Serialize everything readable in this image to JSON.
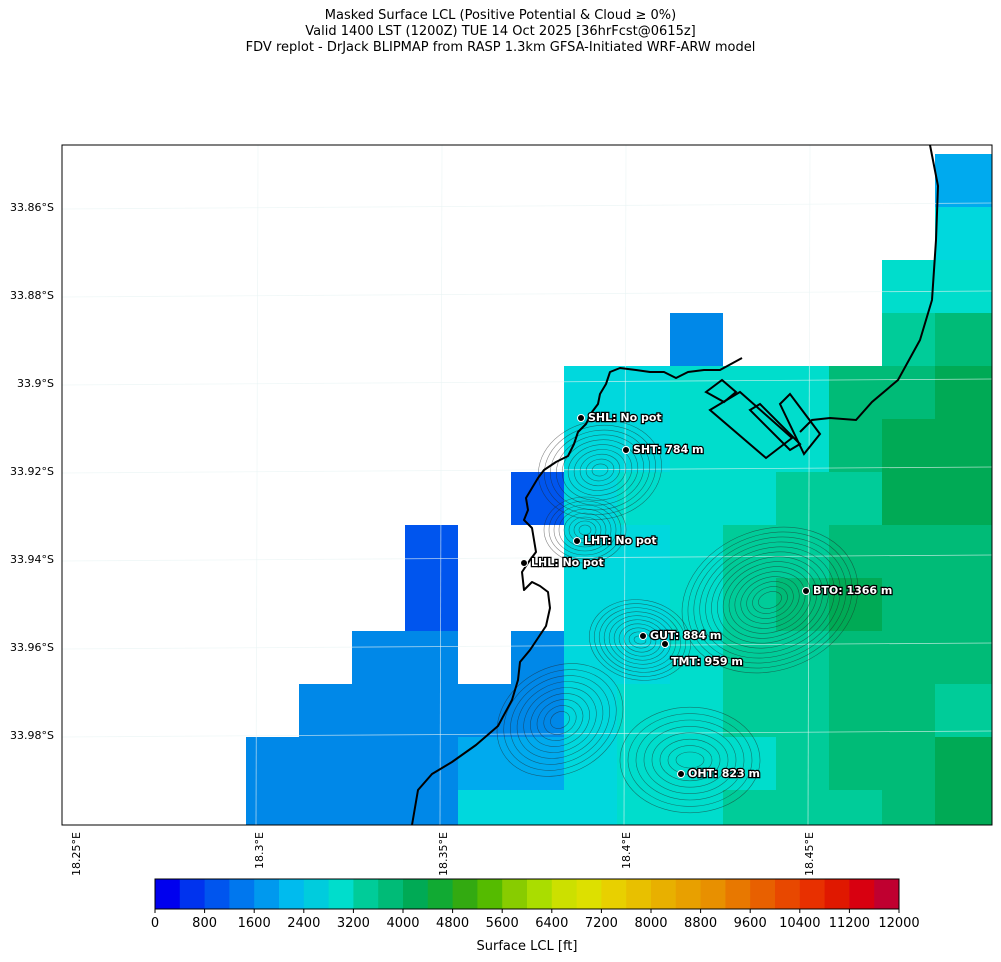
{
  "title": {
    "line1": "Masked Surface LCL (Positive Potential & Cloud ≥ 0%)",
    "line2": "Valid 1400 LST (1200Z) TUE 14 Oct 2025 [36hrFcst@0615z]",
    "line3": "FDV replot - DrJack BLIPMAP from RASP 1.3km GFSA-Initiated WRF-ARW model"
  },
  "map": {
    "lat_ticks": [
      "33.86°S",
      "33.88°S",
      "33.9°S",
      "33.92°S",
      "33.94°S",
      "33.96°S",
      "33.98°S"
    ],
    "lon_ticks": [
      "18.25°E",
      "18.3°E",
      "18.35°E",
      "18.4°E",
      "18.45°E"
    ],
    "stations": [
      {
        "code": "SHL",
        "label": "SHL: No pot",
        "lcl_m": null
      },
      {
        "code": "SHT",
        "label": "SHT: 784 m",
        "lcl_m": 784
      },
      {
        "code": "LHT",
        "label": "LHT: No pot",
        "lcl_m": null
      },
      {
        "code": "LHL",
        "label": "LHL: No pot",
        "lcl_m": null
      },
      {
        "code": "BTO",
        "label": "BTO: 1366 m",
        "lcl_m": 1366
      },
      {
        "code": "GUT",
        "label": "GUT: 884 m",
        "lcl_m": 884
      },
      {
        "code": "TMT",
        "label": "TMT: 959 m",
        "lcl_m": 959
      },
      {
        "code": "OHT",
        "label": "OHT: 823 m",
        "lcl_m": 823
      }
    ]
  },
  "colorbar": {
    "label": "Surface LCL [ft]",
    "min": 0,
    "max": 12000,
    "step": 400,
    "tick_labels": [
      "0",
      "800",
      "1600",
      "2400",
      "3200",
      "4000",
      "4800",
      "5600",
      "6400",
      "7200",
      "8000",
      "8800",
      "9600",
      "10400",
      "11200",
      "12000"
    ],
    "colors": [
      "#0000ee",
      "#0033ee",
      "#0055ee",
      "#0077ee",
      "#0099ee",
      "#00bbee",
      "#00ccdd",
      "#00ddcc",
      "#00cc99",
      "#00bb77",
      "#00aa55",
      "#11aa33",
      "#33aa11",
      "#55bb00",
      "#88cc00",
      "#aadd00",
      "#cce000",
      "#dde000",
      "#e8d000",
      "#e8c000",
      "#e8b000",
      "#e8a000",
      "#e89000",
      "#e87800",
      "#e86000",
      "#e84800",
      "#e83000",
      "#e01800",
      "#d80010",
      "#c00030"
    ]
  },
  "colors": {
    "coastline": "#000000",
    "contour": "#222222",
    "gridline": "#e8f4f4"
  }
}
